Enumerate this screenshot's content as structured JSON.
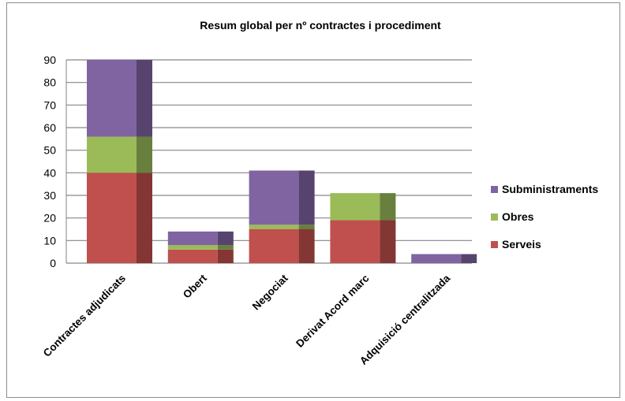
{
  "chart_data": {
    "type": "bar",
    "stacked": true,
    "title": "Resum global per nº contractes i procediment",
    "xlabel": "",
    "ylabel": "",
    "ylim": [
      0,
      90
    ],
    "yticks": [
      0,
      10,
      20,
      30,
      40,
      50,
      60,
      70,
      80,
      90
    ],
    "grid": true,
    "legend_position": "right",
    "categories": [
      "Contractes adjudicats",
      "Obert",
      "Negociat",
      "Derivat Acord marc",
      "Adquisició centralitzada"
    ],
    "series": [
      {
        "name": "Serveis",
        "color": "#c0504d",
        "values": [
          40,
          6,
          15,
          19,
          0
        ]
      },
      {
        "name": "Obres",
        "color": "#9bbb59",
        "values": [
          16,
          2,
          2,
          12,
          0
        ]
      },
      {
        "name": "Subministraments",
        "color": "#8064a2",
        "values": [
          34,
          6,
          24,
          0,
          4
        ]
      }
    ]
  }
}
